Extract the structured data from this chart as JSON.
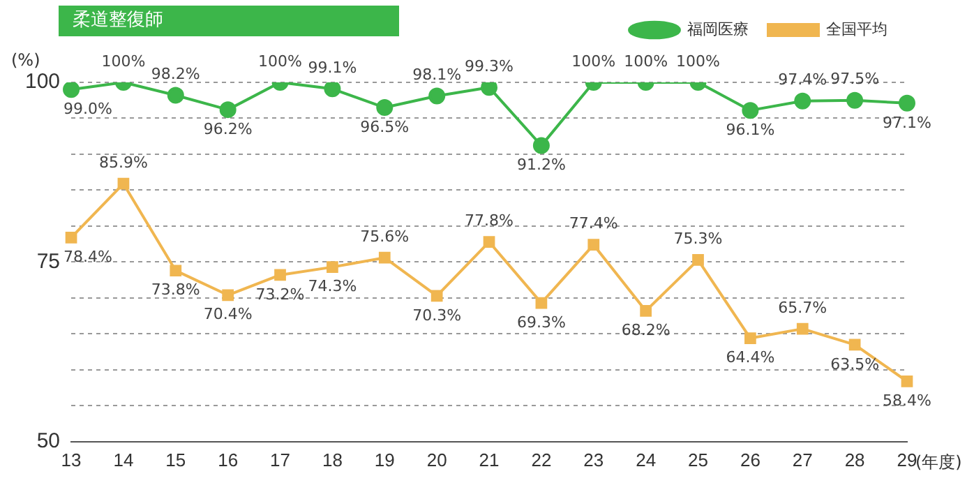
{
  "chart_data": {
    "type": "line",
    "title": "柔道整復師",
    "xlabel": "(年度)",
    "ylabel": "(%)",
    "categories": [
      "13",
      "14",
      "15",
      "16",
      "17",
      "18",
      "19",
      "20",
      "21",
      "22",
      "23",
      "24",
      "25",
      "26",
      "27",
      "28",
      "29"
    ],
    "series": [
      {
        "name": "福岡医療",
        "color": "#3cb64a",
        "marker": "circle",
        "values": [
          99.0,
          100,
          98.2,
          96.2,
          100,
          99.1,
          96.5,
          98.1,
          99.3,
          91.2,
          100,
          100,
          100,
          96.1,
          97.4,
          97.5,
          97.1
        ],
        "value_labels": [
          "99.0%",
          "100%",
          "98.2%",
          "96.2%",
          "100%",
          "99.1%",
          "96.5%",
          "98.1%",
          "99.3%",
          "91.2%",
          "100%",
          "100%",
          "100%",
          "96.1%",
          "97.4%",
          "97.5%",
          "97.1%"
        ]
      },
      {
        "name": "全国平均",
        "color": "#f0b650",
        "marker": "square",
        "values": [
          78.4,
          85.9,
          73.8,
          70.4,
          73.2,
          74.3,
          75.6,
          70.3,
          77.8,
          69.3,
          77.4,
          68.2,
          75.3,
          64.4,
          65.7,
          63.5,
          58.4
        ],
        "value_labels": [
          "78.4%",
          "85.9%",
          "73.8%",
          "70.4%",
          "73.2%",
          "74.3%",
          "75.6%",
          "70.3%",
          "77.8%",
          "69.3%",
          "77.4%",
          "68.2%",
          "75.3%",
          "64.4%",
          "65.7%",
          "63.5%",
          "58.4%"
        ]
      }
    ],
    "ylim": [
      50,
      100
    ],
    "yticks": [
      50,
      {
        "value": 55,
        "label": null
      },
      {
        "value": 60,
        "label": null
      },
      {
        "value": 65,
        "label": null
      },
      {
        "value": 70,
        "label": null
      },
      75,
      {
        "value": 80,
        "label": null
      },
      {
        "value": 85,
        "label": null
      },
      {
        "value": 90,
        "label": null
      },
      {
        "value": 95,
        "label": null
      },
      100
    ],
    "grid": "y",
    "legend": "top right",
    "line_style": "solid"
  }
}
